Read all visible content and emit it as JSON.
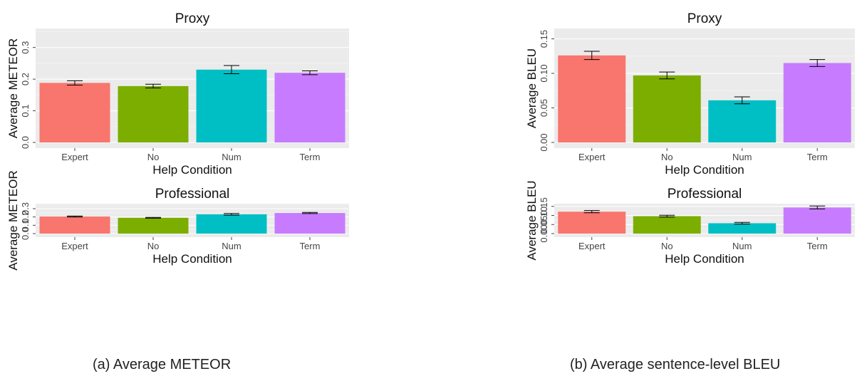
{
  "captions": {
    "left": "(a) Average METEOR",
    "right": "(b) Average sentence-level BLEU"
  },
  "colors": {
    "Expert": "#F8766D",
    "No": "#7CAE00",
    "Num": "#00BFC4",
    "Term": "#C77CFF",
    "panel_bg": "#EBEBEB",
    "grid": "#FFFFFF"
  },
  "chart_data": [
    {
      "type": "bar",
      "title": "Proxy",
      "xlabel": "Help Condition",
      "ylabel": "Average METEOR",
      "categories": [
        "Expert",
        "No",
        "Num",
        "Term"
      ],
      "values": [
        0.188,
        0.178,
        0.23,
        0.22
      ],
      "errors": [
        0.007,
        0.006,
        0.013,
        0.006
      ],
      "ylim": [
        0,
        0.36
      ],
      "yticks": [
        0,
        0.1,
        0.2,
        0.3
      ],
      "ytick_labels": [
        "0.0",
        "0.1",
        "0.2",
        "0.3"
      ],
      "grid": true
    },
    {
      "type": "bar",
      "title": "Professional",
      "xlabel": "Help Condition",
      "ylabel": "Average METEOR",
      "categories": [
        "Expert",
        "No",
        "Num",
        "Term"
      ],
      "values": [
        0.205,
        0.19,
        0.232,
        0.248
      ],
      "errors": [
        0.006,
        0.005,
        0.01,
        0.007
      ],
      "ylim": [
        0,
        0.36
      ],
      "yticks": [
        0,
        0.1,
        0.2,
        0.3
      ],
      "ytick_labels": [
        "0.0",
        "0.1",
        "0.2",
        "0.3"
      ],
      "grid": true
    },
    {
      "type": "bar",
      "title": "Proxy",
      "xlabel": "Help Condition",
      "ylabel": "Average BLEU",
      "categories": [
        "Expert",
        "No",
        "Num",
        "Term"
      ],
      "values": [
        0.126,
        0.097,
        0.061,
        0.115
      ],
      "errors": [
        0.006,
        0.005,
        0.005,
        0.005
      ],
      "ylim": [
        0,
        0.165
      ],
      "yticks": [
        0,
        0.05,
        0.1,
        0.15
      ],
      "ytick_labels": [
        "0.00",
        "0.05",
        "0.10",
        "0.15"
      ],
      "grid": true
    },
    {
      "type": "bar",
      "title": "Professional",
      "xlabel": "Help Condition",
      "ylabel": "Average BLEU",
      "categories": [
        "Expert",
        "No",
        "Num",
        "Term"
      ],
      "values": [
        0.121,
        0.096,
        0.057,
        0.144
      ],
      "errors": [
        0.006,
        0.005,
        0.005,
        0.008
      ],
      "ylim": [
        0,
        0.165
      ],
      "yticks": [
        0,
        0.05,
        0.1,
        0.15
      ],
      "ytick_labels": [
        "0.00",
        "0.05",
        "0.10",
        "0.15"
      ],
      "grid": true
    }
  ]
}
